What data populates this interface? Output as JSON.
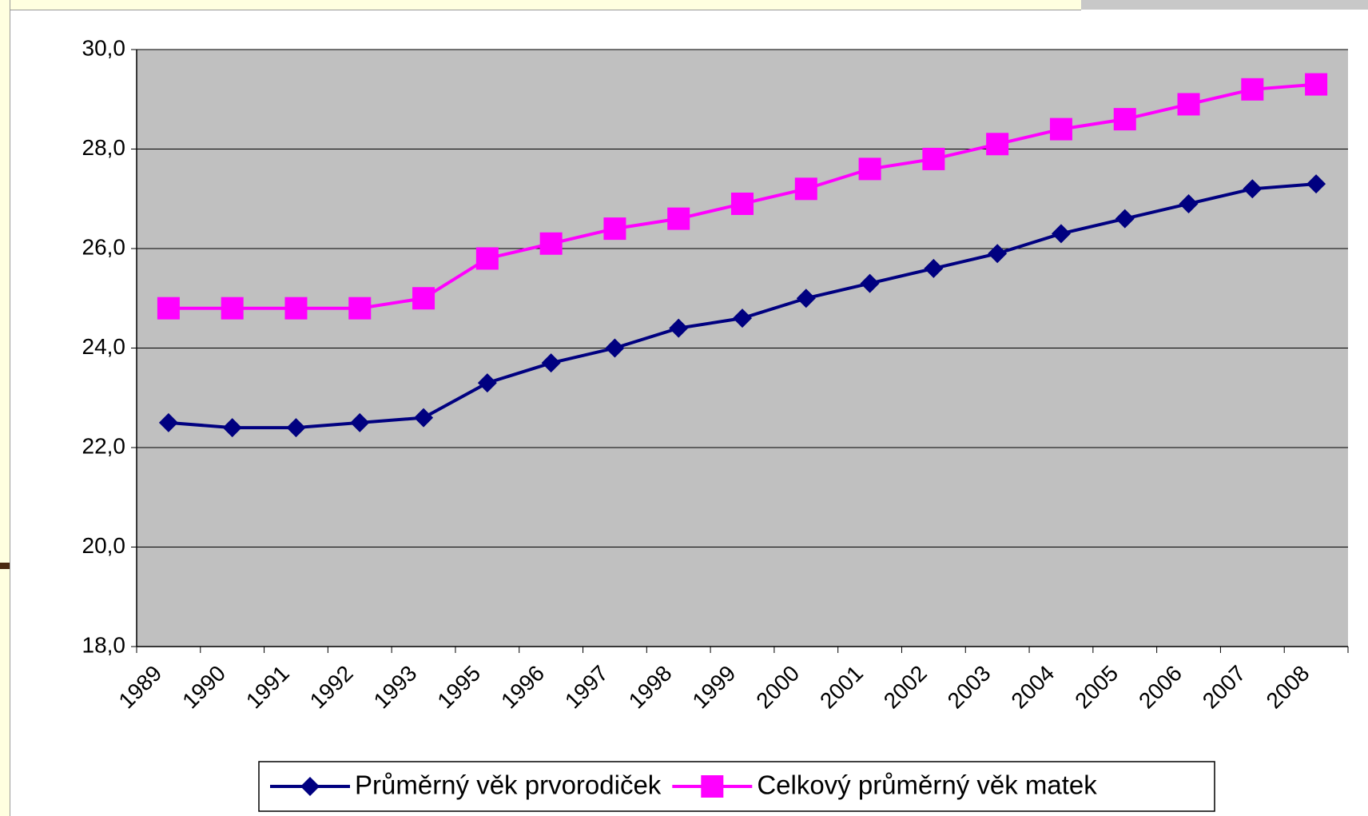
{
  "chart_data": {
    "type": "line",
    "categories": [
      "1989",
      "1990",
      "1991",
      "1992",
      "1993",
      "1995",
      "1996",
      "1997",
      "1998",
      "1999",
      "2000",
      "2001",
      "2002",
      "2003",
      "2004",
      "2005",
      "2006",
      "2007",
      "2008"
    ],
    "series": [
      {
        "name": "Průměrný věk prvorodiček",
        "color": "#000080",
        "marker": "diamond",
        "values": [
          22.5,
          22.4,
          22.4,
          22.5,
          22.6,
          23.3,
          23.7,
          24.0,
          24.4,
          24.6,
          25.0,
          25.3,
          25.6,
          25.9,
          26.3,
          26.6,
          26.9,
          27.2,
          27.3
        ]
      },
      {
        "name": "Celkový průměrný věk matek",
        "color": "#ff00ff",
        "marker": "square",
        "values": [
          24.8,
          24.8,
          24.8,
          24.8,
          25.0,
          25.8,
          26.1,
          26.4,
          26.6,
          26.9,
          27.2,
          27.6,
          27.8,
          28.1,
          28.4,
          28.6,
          28.9,
          29.2,
          29.3
        ]
      }
    ],
    "ylim": [
      18,
      30
    ],
    "yticks": [
      {
        "value": 18,
        "label": "18,0"
      },
      {
        "value": 20,
        "label": "20,0"
      },
      {
        "value": 22,
        "label": "22,0"
      },
      {
        "value": 24,
        "label": "24,0"
      },
      {
        "value": 26,
        "label": "26,0"
      },
      {
        "value": 28,
        "label": "28,0"
      },
      {
        "value": 30,
        "label": "30,0"
      }
    ],
    "grid": true,
    "plot_background": "#c0c0c0",
    "legend": "bottom"
  }
}
